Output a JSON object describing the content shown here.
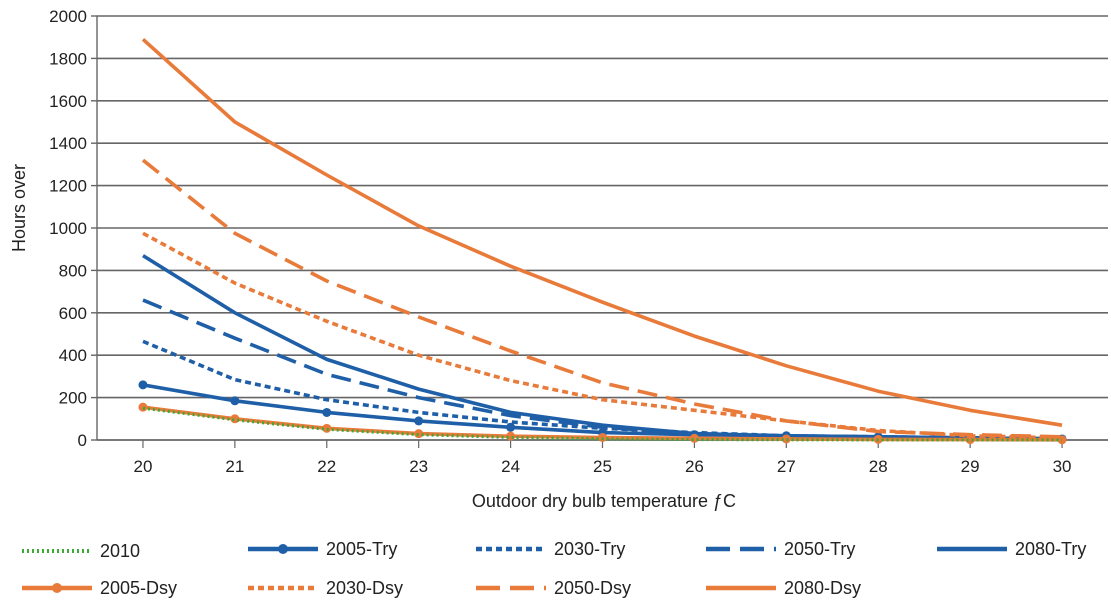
{
  "chart_data": {
    "type": "line",
    "title": "",
    "xlabel": "Outdoor dry bulb temperature ƒC",
    "ylabel": "Hours over",
    "x": [
      20,
      21,
      22,
      23,
      24,
      25,
      26,
      27,
      28,
      29,
      30
    ],
    "xlim": [
      19.5,
      30.5
    ],
    "ylim": [
      0,
      2000
    ],
    "yticks": [
      0,
      200,
      400,
      600,
      800,
      1000,
      1200,
      1400,
      1600,
      1800,
      2000
    ],
    "grid": true,
    "legend_position": "bottom",
    "series": [
      {
        "name": "2010",
        "color": "#3aaa35",
        "dash": "dotted",
        "marker": false,
        "values": [
          150,
          95,
          50,
          25,
          12,
          5,
          2,
          1,
          0,
          0,
          0
        ]
      },
      {
        "name": "2005-Try",
        "color": "#1f5fa8",
        "dash": "solid",
        "marker": true,
        "values": [
          260,
          185,
          130,
          90,
          60,
          35,
          25,
          20,
          15,
          10,
          5
        ]
      },
      {
        "name": "2030-Try",
        "color": "#1f5fa8",
        "dash": "short",
        "marker": false,
        "values": [
          465,
          285,
          190,
          130,
          85,
          55,
          35,
          20,
          15,
          10,
          5
        ]
      },
      {
        "name": "2050-Try",
        "color": "#1f5fa8",
        "dash": "long",
        "marker": false,
        "values": [
          660,
          480,
          310,
          200,
          115,
          60,
          30,
          15,
          10,
          10,
          5
        ]
      },
      {
        "name": "2080-Try",
        "color": "#1f5fa8",
        "dash": "solid",
        "marker": false,
        "values": [
          870,
          600,
          380,
          240,
          130,
          70,
          30,
          20,
          15,
          10,
          5
        ]
      },
      {
        "name": "2005-Dsy",
        "color": "#e87a3a",
        "dash": "solid",
        "marker": true,
        "values": [
          155,
          100,
          55,
          30,
          18,
          12,
          8,
          5,
          3,
          2,
          1
        ]
      },
      {
        "name": "2030-Dsy",
        "color": "#e87a3a",
        "dash": "short",
        "marker": false,
        "values": [
          975,
          740,
          560,
          400,
          280,
          190,
          140,
          90,
          45,
          20,
          10
        ]
      },
      {
        "name": "2050-Dsy",
        "color": "#e87a3a",
        "dash": "long",
        "marker": false,
        "values": [
          1320,
          975,
          750,
          580,
          420,
          270,
          170,
          90,
          40,
          25,
          15
        ]
      },
      {
        "name": "2080-Dsy",
        "color": "#e87a3a",
        "dash": "solid",
        "marker": false,
        "values": [
          1890,
          1500,
          1250,
          1010,
          820,
          650,
          490,
          350,
          230,
          140,
          70
        ]
      }
    ]
  }
}
